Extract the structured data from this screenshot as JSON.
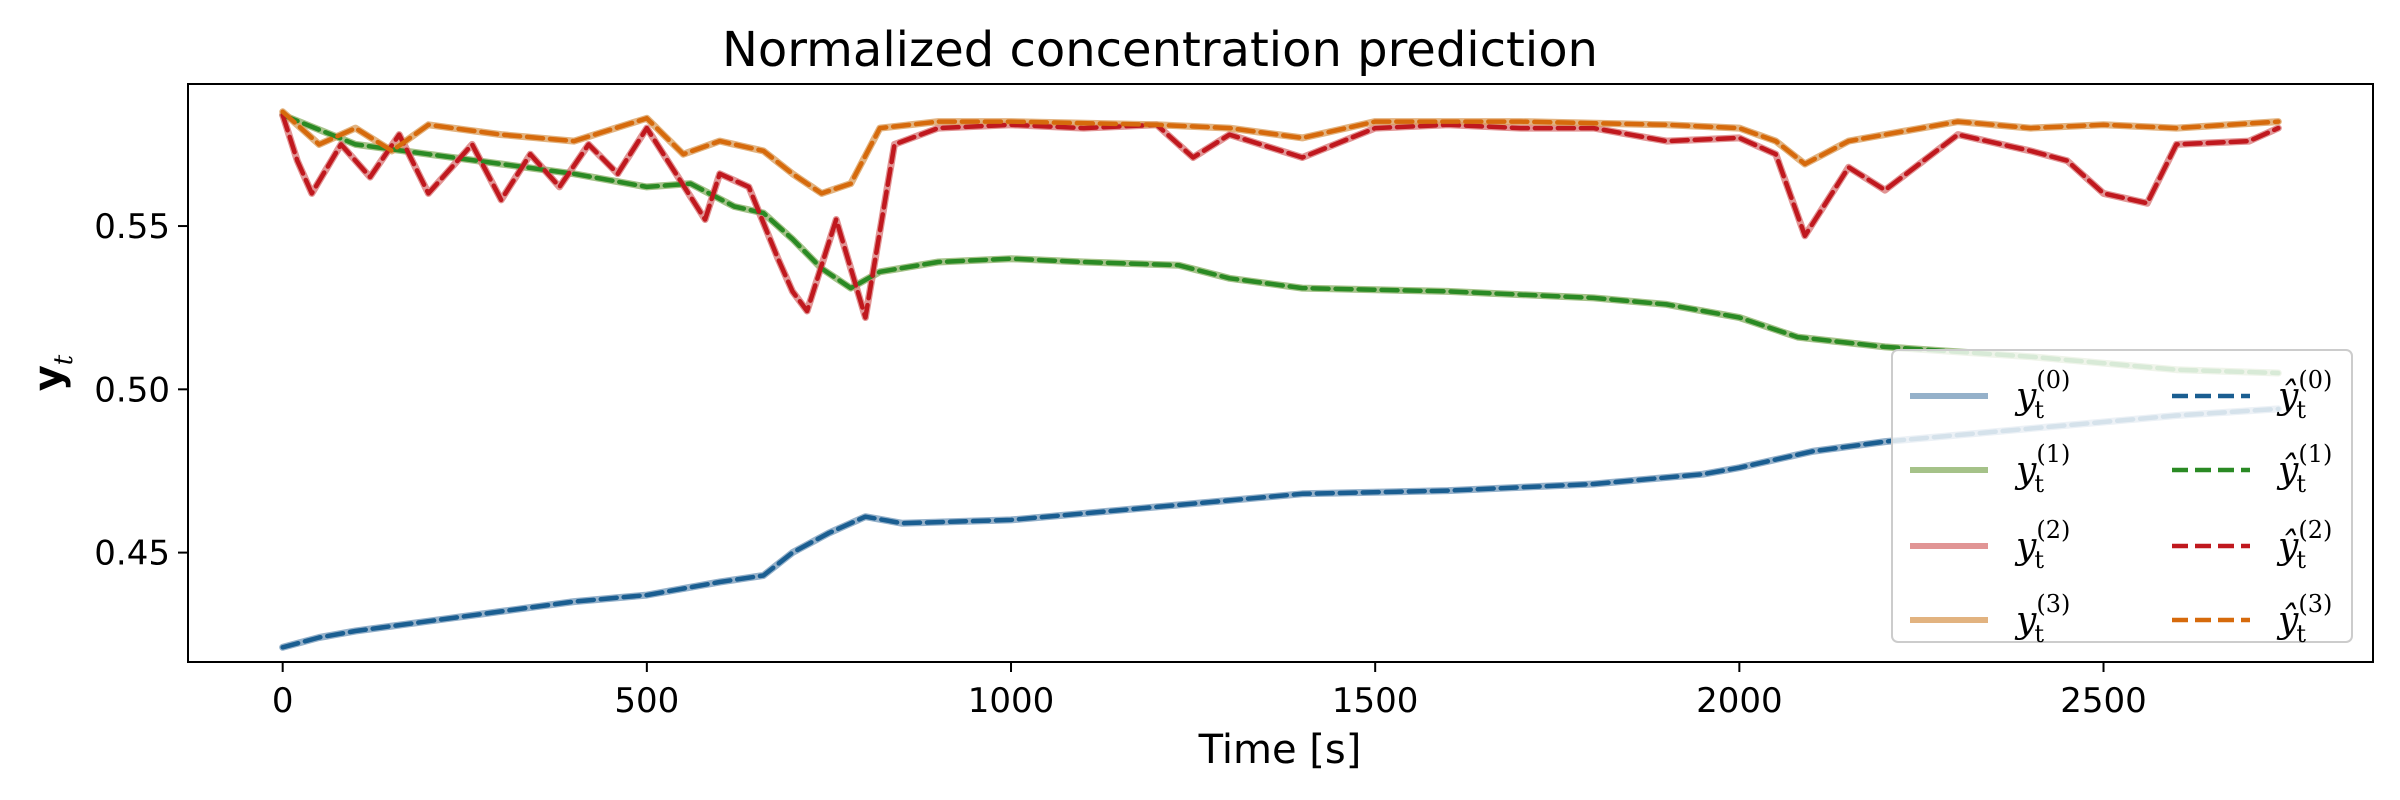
{
  "chart_data": {
    "type": "line",
    "title": "Normalized concentration prediction",
    "xlabel": "Time [s]",
    "ylabel_main": "y",
    "ylabel_sub": "t",
    "xlim": [
      -130,
      2870
    ],
    "ylim": [
      0.4165,
      0.5935
    ],
    "xticks": [
      0,
      500,
      1000,
      1500,
      2000,
      2500
    ],
    "yticks": [
      0.45,
      0.5,
      0.55
    ],
    "ytick_labels": [
      "0.45",
      "0.50",
      "0.55"
    ],
    "legend_position": "lower-right",
    "series": [
      {
        "name": "y_t^(0)",
        "label_main": "y",
        "label_sub": "t",
        "label_sup": "(0)",
        "style": "solid",
        "color": "#7b9ebd",
        "x": [
          0,
          50,
          100,
          200,
          300,
          400,
          500,
          600,
          660,
          700,
          750,
          800,
          850,
          1000,
          1200,
          1400,
          1600,
          1800,
          1950,
          2000,
          2100,
          2200,
          2400,
          2500,
          2600,
          2740
        ],
        "y": [
          0.421,
          0.424,
          0.426,
          0.429,
          0.432,
          0.435,
          0.437,
          0.441,
          0.443,
          0.45,
          0.456,
          0.461,
          0.459,
          0.46,
          0.464,
          0.468,
          0.469,
          0.471,
          0.474,
          0.476,
          0.481,
          0.484,
          0.488,
          0.49,
          0.492,
          0.494
        ]
      },
      {
        "name": "y_t^(1)",
        "label_main": "y",
        "label_sub": "t",
        "label_sup": "(1)",
        "style": "solid",
        "color": "#8fb36b",
        "x": [
          0,
          100,
          200,
          300,
          400,
          500,
          560,
          620,
          660,
          700,
          740,
          780,
          820,
          900,
          1000,
          1100,
          1230,
          1300,
          1400,
          1600,
          1800,
          1900,
          2000,
          2080,
          2200,
          2400,
          2500,
          2600,
          2740
        ],
        "y": [
          0.584,
          0.575,
          0.572,
          0.569,
          0.566,
          0.562,
          0.563,
          0.556,
          0.554,
          0.546,
          0.537,
          0.531,
          0.536,
          0.539,
          0.54,
          0.539,
          0.538,
          0.534,
          0.531,
          0.53,
          0.528,
          0.526,
          0.522,
          0.516,
          0.513,
          0.51,
          0.508,
          0.506,
          0.505
        ]
      },
      {
        "name": "y_t^(2)",
        "label_main": "y",
        "label_sub": "t",
        "label_sup": "(2)",
        "style": "solid",
        "color": "#d97a7a",
        "x": [
          0,
          20,
          40,
          80,
          120,
          160,
          200,
          260,
          300,
          340,
          380,
          420,
          460,
          500,
          540,
          580,
          600,
          640,
          680,
          700,
          720,
          760,
          800,
          840,
          900,
          1000,
          1100,
          1200,
          1250,
          1300,
          1400,
          1500,
          1600,
          1700,
          1800,
          1900,
          2000,
          2050,
          2090,
          2150,
          2200,
          2300,
          2400,
          2450,
          2500,
          2560,
          2600,
          2700,
          2740
        ],
        "y": [
          0.584,
          0.57,
          0.56,
          0.575,
          0.565,
          0.578,
          0.56,
          0.575,
          0.558,
          0.572,
          0.562,
          0.575,
          0.566,
          0.58,
          0.566,
          0.552,
          0.566,
          0.562,
          0.54,
          0.53,
          0.524,
          0.552,
          0.522,
          0.575,
          0.58,
          0.581,
          0.58,
          0.581,
          0.571,
          0.578,
          0.571,
          0.58,
          0.581,
          0.58,
          0.58,
          0.576,
          0.577,
          0.572,
          0.547,
          0.568,
          0.561,
          0.578,
          0.573,
          0.57,
          0.56,
          0.557,
          0.575,
          0.576,
          0.58
        ]
      },
      {
        "name": "y_t^(3)",
        "label_main": "y",
        "label_sub": "t",
        "label_sup": "(3)",
        "style": "solid",
        "color": "#dba060",
        "x": [
          0,
          50,
          100,
          150,
          200,
          300,
          400,
          500,
          550,
          600,
          660,
          700,
          740,
          780,
          820,
          900,
          1000,
          1200,
          1300,
          1400,
          1500,
          1700,
          1900,
          2000,
          2050,
          2090,
          2150,
          2300,
          2400,
          2500,
          2600,
          2740
        ],
        "y": [
          0.585,
          0.575,
          0.58,
          0.573,
          0.581,
          0.578,
          0.576,
          0.583,
          0.572,
          0.576,
          0.573,
          0.566,
          0.56,
          0.563,
          0.58,
          0.582,
          0.582,
          0.581,
          0.58,
          0.577,
          0.582,
          0.582,
          0.581,
          0.58,
          0.576,
          0.569,
          0.576,
          0.582,
          0.58,
          0.581,
          0.58,
          0.582
        ]
      },
      {
        "name": "ŷ_t^(0)",
        "label_main": "ŷ",
        "label_sub": "t",
        "label_sup": "(0)",
        "style": "dashed",
        "color": "#1a5e91",
        "x": [
          0,
          50,
          100,
          200,
          300,
          400,
          500,
          600,
          660,
          700,
          750,
          800,
          850,
          1000,
          1200,
          1400,
          1600,
          1800,
          1950,
          2000,
          2100,
          2200,
          2400,
          2500,
          2600,
          2740
        ],
        "y": [
          0.421,
          0.424,
          0.426,
          0.429,
          0.432,
          0.435,
          0.437,
          0.441,
          0.443,
          0.45,
          0.456,
          0.461,
          0.459,
          0.46,
          0.464,
          0.468,
          0.469,
          0.471,
          0.474,
          0.476,
          0.481,
          0.484,
          0.488,
          0.49,
          0.492,
          0.494
        ]
      },
      {
        "name": "ŷ_t^(1)",
        "label_main": "ŷ",
        "label_sub": "t",
        "label_sup": "(1)",
        "style": "dashed",
        "color": "#2a8a24",
        "x": [
          0,
          100,
          200,
          300,
          400,
          500,
          560,
          620,
          660,
          700,
          740,
          780,
          820,
          900,
          1000,
          1100,
          1230,
          1300,
          1400,
          1600,
          1800,
          1900,
          2000,
          2080,
          2200,
          2400,
          2500,
          2600,
          2740
        ],
        "y": [
          0.584,
          0.575,
          0.572,
          0.569,
          0.566,
          0.562,
          0.563,
          0.556,
          0.554,
          0.546,
          0.537,
          0.531,
          0.536,
          0.539,
          0.54,
          0.539,
          0.538,
          0.534,
          0.531,
          0.53,
          0.528,
          0.526,
          0.522,
          0.516,
          0.513,
          0.51,
          0.508,
          0.506,
          0.505
        ]
      },
      {
        "name": "ŷ_t^(2)",
        "label_main": "ŷ",
        "label_sub": "t",
        "label_sup": "(2)",
        "style": "dashed",
        "color": "#c0181e",
        "x": [
          0,
          20,
          40,
          80,
          120,
          160,
          200,
          260,
          300,
          340,
          380,
          420,
          460,
          500,
          540,
          580,
          600,
          640,
          680,
          700,
          720,
          760,
          800,
          840,
          900,
          1000,
          1100,
          1200,
          1250,
          1300,
          1400,
          1500,
          1600,
          1700,
          1800,
          1900,
          2000,
          2050,
          2090,
          2150,
          2200,
          2300,
          2400,
          2450,
          2500,
          2560,
          2600,
          2700,
          2740
        ],
        "y": [
          0.584,
          0.57,
          0.56,
          0.575,
          0.565,
          0.578,
          0.56,
          0.575,
          0.558,
          0.572,
          0.562,
          0.575,
          0.566,
          0.58,
          0.566,
          0.552,
          0.566,
          0.562,
          0.54,
          0.53,
          0.524,
          0.552,
          0.522,
          0.575,
          0.58,
          0.581,
          0.58,
          0.581,
          0.571,
          0.578,
          0.571,
          0.58,
          0.581,
          0.58,
          0.58,
          0.576,
          0.577,
          0.572,
          0.547,
          0.568,
          0.561,
          0.578,
          0.573,
          0.57,
          0.56,
          0.557,
          0.575,
          0.576,
          0.58
        ]
      },
      {
        "name": "ŷ_t^(3)",
        "label_main": "ŷ",
        "label_sub": "t",
        "label_sup": "(3)",
        "style": "dashed",
        "color": "#d66a0c",
        "x": [
          0,
          50,
          100,
          150,
          200,
          300,
          400,
          500,
          550,
          600,
          660,
          700,
          740,
          780,
          820,
          900,
          1000,
          1200,
          1300,
          1400,
          1500,
          1700,
          1900,
          2000,
          2050,
          2090,
          2150,
          2300,
          2400,
          2500,
          2600,
          2740
        ],
        "y": [
          0.585,
          0.575,
          0.58,
          0.573,
          0.581,
          0.578,
          0.576,
          0.583,
          0.572,
          0.576,
          0.573,
          0.566,
          0.56,
          0.563,
          0.58,
          0.582,
          0.582,
          0.581,
          0.58,
          0.577,
          0.582,
          0.582,
          0.581,
          0.58,
          0.576,
          0.569,
          0.576,
          0.582,
          0.58,
          0.581,
          0.58,
          0.582
        ]
      }
    ]
  }
}
